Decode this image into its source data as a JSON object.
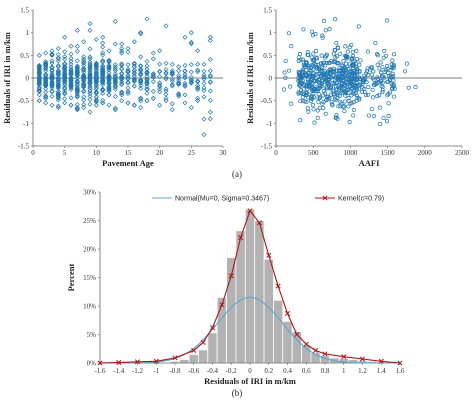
{
  "colors": {
    "scatter": "#1f77b4",
    "normal": "#5aa7d6",
    "kernel": "#b41414",
    "bar": "#b3b3b3",
    "bar_edge": "#ffffff",
    "axis": "#666666"
  },
  "panel_labels": {
    "a": "(a)",
    "b": "(b)"
  },
  "chart_data": [
    {
      "type": "scatter",
      "title": "",
      "xlabel": "Pavement Age",
      "ylabel": "Residuals of IRI in m/km",
      "xlim": [
        0,
        30
      ],
      "ylim": [
        -1.5,
        1.5
      ],
      "xticks": [
        0,
        5,
        10,
        15,
        20,
        25,
        30
      ],
      "yticks": [
        -1.5,
        -1,
        -0.5,
        0,
        0.5,
        1,
        1.5
      ],
      "xtick_labels": [
        "0",
        "5",
        "10",
        "15",
        "20",
        "25",
        "30"
      ],
      "ytick_labels": [
        "-1.5",
        "-1",
        "-0.5",
        "0",
        "0.5",
        "1",
        "1.5"
      ],
      "reference_line_y": 0,
      "marker": "open-diamond",
      "points_description": "points at integer ages 1-28, spread roughly -0.75 to 1.3, densest near 0",
      "x_values": [
        1,
        2,
        3,
        4,
        5,
        6,
        7,
        8,
        9,
        10,
        11,
        12,
        13,
        14,
        15,
        16,
        17,
        18,
        19,
        20,
        21,
        22,
        23,
        24,
        25,
        26,
        27,
        28
      ],
      "y_min": [
        -0.5,
        -0.55,
        -0.6,
        -0.65,
        -0.55,
        -0.6,
        -0.7,
        -0.65,
        -0.75,
        -0.6,
        -0.55,
        -0.6,
        -0.7,
        -0.5,
        -0.55,
        -0.6,
        -0.65,
        -0.5,
        -0.45,
        -0.6,
        -0.5,
        -0.7,
        -0.4,
        -0.55,
        -0.65,
        -0.5,
        -1.25,
        -0.9
      ],
      "y_max": [
        0.5,
        0.55,
        0.6,
        0.65,
        0.9,
        0.7,
        1.05,
        0.8,
        1.2,
        0.85,
        0.9,
        0.6,
        1.25,
        0.75,
        0.65,
        0.8,
        1.0,
        1.3,
        0.55,
        0.6,
        1.15,
        0.3,
        0.25,
        0.9,
        1.0,
        0.6,
        0.3,
        0.9
      ]
    },
    {
      "type": "scatter",
      "title": "",
      "xlabel": "AAFI",
      "ylabel": "Residuals of IRI in m/km",
      "xlim": [
        0,
        2500
      ],
      "ylim": [
        -1.5,
        1.5
      ],
      "xticks": [
        0,
        500,
        1000,
        1500,
        2000,
        2500
      ],
      "yticks": [
        -1.5,
        -1,
        -0.5,
        0,
        0.5,
        1,
        1.5
      ],
      "xtick_labels": [
        "0",
        "500",
        "1000",
        "1500",
        "2000",
        "2500"
      ],
      "ytick_labels": [
        "-1.5",
        "-1",
        "-0.5",
        "0",
        "0.5",
        "1",
        "1.5"
      ],
      "reference_line_y": 0,
      "marker": "open-circle",
      "points_description": "dense cloud from AAFI ~100 to ~1900, residuals -1.2 to 1.3, concentrated 300-1100",
      "x_range": [
        100,
        1900
      ],
      "y_range": [
        -1.2,
        1.3
      ]
    },
    {
      "type": "bar",
      "title": "",
      "xlabel": "Residuals of IRI in m/km",
      "ylabel": "Percent",
      "xlim": [
        -1.6,
        1.6
      ],
      "ylim": [
        0,
        30
      ],
      "xticks": [
        -1.6,
        -1.4,
        -1.2,
        -1,
        -0.8,
        -0.6,
        -0.4,
        -0.2,
        0,
        0.2,
        0.4,
        0.6,
        0.8,
        1,
        1.2,
        1.4,
        1.6
      ],
      "xtick_labels": [
        "-1.6",
        "-1.4",
        "-1.2",
        "-1",
        "-0.8",
        "-0.6",
        "-0.4",
        "-0.2",
        "0",
        "0.2",
        "0.4",
        "0.6",
        "0.8",
        "1",
        "1.2",
        "1.4",
        "1.6"
      ],
      "yticks": [
        0,
        5,
        10,
        15,
        20,
        25,
        30
      ],
      "ytick_labels": [
        "0%",
        "5%",
        "10%",
        "15%",
        "20%",
        "25%",
        "30%"
      ],
      "bins": {
        "centers": [
          -0.8,
          -0.7,
          -0.6,
          -0.5,
          -0.4,
          -0.3,
          -0.2,
          -0.1,
          0.0,
          0.1,
          0.2,
          0.3,
          0.4,
          0.5,
          0.6,
          0.7,
          0.8,
          0.9,
          1.0,
          1.1,
          1.2,
          1.3
        ],
        "width": 0.1,
        "values": [
          0.3,
          0.6,
          1.5,
          2.3,
          5.3,
          11.5,
          18.5,
          23.2,
          27.0,
          25.0,
          18.2,
          11.0,
          7.3,
          5.5,
          3.1,
          1.8,
          1.3,
          0.9,
          0.8,
          0.6,
          0.4,
          0.3
        ]
      },
      "series": [
        {
          "name": "Normal(Mu=0, Sigma=0.3467)",
          "type": "line",
          "mu": 0,
          "sigma": 0.3467
        },
        {
          "name": "Kernel(c=0.79)",
          "type": "line",
          "marker": "x",
          "x": [
            -1.6,
            -1.4,
            -1.2,
            -1.0,
            -0.8,
            -0.6,
            -0.5,
            -0.4,
            -0.3,
            -0.2,
            -0.1,
            0.0,
            0.1,
            0.2,
            0.3,
            0.4,
            0.5,
            0.6,
            0.7,
            0.8,
            1.0,
            1.2,
            1.4,
            1.6
          ],
          "y": [
            0,
            0.1,
            0.2,
            0.3,
            0.9,
            2.2,
            3.6,
            6.2,
            10.2,
            15.3,
            22.0,
            26.7,
            24.6,
            18.9,
            13.5,
            8.7,
            5.0,
            3.3,
            2.2,
            1.6,
            1.1,
            0.7,
            0.3,
            0
          ]
        }
      ],
      "legend": "top"
    }
  ]
}
